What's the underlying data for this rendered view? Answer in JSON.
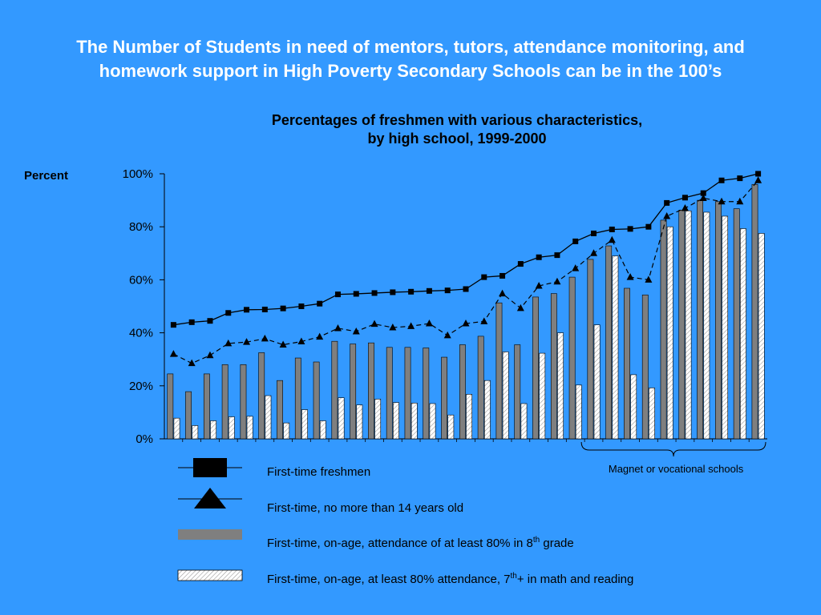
{
  "slide": {
    "title_line1": "The Number of Students in need of mentors, tutors, attendance monitoring, and",
    "title_line2": "homework support in High Poverty Secondary Schools can be in the 100’s"
  },
  "colors": {
    "background": "#3399FF",
    "bar_gray": "#7F7F7F",
    "bar_hatched": "#FFFFFF",
    "line": "#000000"
  },
  "chart_data": {
    "type": "bar",
    "title_line1": "Percentages of freshmen with various characteristics,",
    "title_line2": "by high school, 1999-2000",
    "ylabel": "Percent",
    "ylim": [
      0,
      100
    ],
    "yticks": [
      "0%",
      "20%",
      "40%",
      "60%",
      "80%",
      "100%"
    ],
    "ytick_values": [
      0,
      20,
      40,
      60,
      80,
      100
    ],
    "grid": false,
    "annotation": "Magnet or vocational schools",
    "annotation_start_school": 23,
    "school_count": 33,
    "series": [
      {
        "name": "First-time freshmen",
        "type": "line",
        "marker": "square",
        "values": [
          43,
          44,
          44.5,
          47.5,
          48.7,
          48.8,
          49.2,
          50,
          51,
          54.5,
          54.7,
          55,
          55.3,
          55.5,
          55.8,
          56,
          56.5,
          61,
          61.5,
          66,
          68.5,
          69.3,
          74.5,
          77.5,
          79,
          79.2,
          80,
          89,
          91,
          92.7,
          97.5,
          98.3,
          100
        ]
      },
      {
        "name": "First-time, no more than 14 years old",
        "type": "line",
        "marker": "triangle",
        "values": [
          32,
          28.5,
          31.5,
          36,
          36.5,
          37.8,
          35.5,
          36.7,
          38.5,
          41.7,
          40.5,
          43.3,
          42,
          42.5,
          43.5,
          39,
          43.5,
          44.3,
          54.8,
          49.3,
          57.7,
          59.3,
          64.3,
          70,
          75,
          61,
          60,
          84,
          87,
          90.8,
          89.5,
          89.5,
          97.5
        ]
      },
      {
        "name": "First-time, on-age, attendance of at least 80% in 8",
        "sup": "th",
        "suffix": " grade",
        "type": "bar",
        "fill": "gray",
        "values": [
          24.5,
          17.8,
          24.5,
          28,
          28,
          32.5,
          22,
          30.5,
          29,
          36.8,
          35.8,
          36.2,
          34.5,
          34.5,
          34.3,
          30.8,
          35.5,
          38.7,
          51.3,
          35.5,
          53.5,
          54.8,
          61,
          67.7,
          72.8,
          56.8,
          54.3,
          82.5,
          86.3,
          90,
          89.5,
          86.8,
          96
        ]
      },
      {
        "name": "First-time, on-age, at least 80% attendance, 7",
        "sup": "th",
        "suffix": "+ in math and reading",
        "type": "bar",
        "fill": "hatched",
        "values": [
          7.8,
          5,
          6.8,
          8.3,
          8.5,
          16.3,
          6,
          11,
          6.8,
          15.5,
          12.8,
          15,
          13.7,
          13.5,
          13.3,
          9,
          16.8,
          22,
          32.8,
          13.3,
          32.3,
          40,
          20.3,
          43,
          69,
          24.2,
          19.2,
          80,
          86,
          85.5,
          84,
          79.3,
          77.5
        ]
      }
    ]
  }
}
